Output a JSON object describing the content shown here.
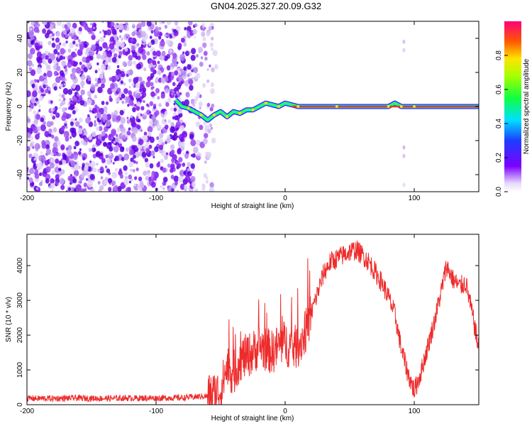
{
  "title": "GN04.2025.327.20.09.G32",
  "colors": {
    "snr_line": "#ee2b2b",
    "scatter_low": "#cdb8ee",
    "scatter_high": "#6a00e0",
    "band_center": "#e43a22"
  },
  "chart_data": [
    {
      "type": "heatmap",
      "title": "GN04.2025.327.20.09.G32",
      "xlabel": "Height of straight line (km)",
      "ylabel": "Frequency (Hz)",
      "xlim": [
        -200,
        150
      ],
      "ylim": [
        -50,
        50
      ],
      "xticks": [
        -200,
        -100,
        0,
        100
      ],
      "xtick_labels": [
        "-200",
        "-100",
        "0",
        "100"
      ],
      "yticks": [
        -40,
        -20,
        0,
        20,
        40
      ],
      "ytick_labels": [
        "-40",
        "-20",
        "0",
        "20",
        "40"
      ],
      "colorbar": {
        "label": "Normalized spectral amplitude",
        "range": [
          0,
          1
        ],
        "ticks": [
          0.0,
          0.2,
          0.4,
          0.6,
          0.8
        ],
        "tick_labels": [
          "0.0",
          "0.2",
          "0.4",
          "0.6",
          "0.8"
        ]
      },
      "signal_track": {
        "x": [
          -85,
          -80,
          -75,
          -70,
          -65,
          -60,
          -55,
          -50,
          -45,
          -40,
          -35,
          -30,
          -25,
          -20,
          -15,
          -10,
          -5,
          0,
          10,
          20,
          40,
          60,
          80,
          85,
          90,
          95,
          100,
          120,
          150
        ],
        "y": [
          4,
          0,
          -1,
          -3,
          -5,
          -8,
          -5,
          -3,
          -6,
          -3,
          -4,
          -2,
          -2,
          0,
          2,
          1,
          0,
          2,
          0,
          0,
          0,
          0,
          0,
          2,
          0,
          0,
          0,
          0,
          0
        ]
      }
    },
    {
      "type": "line",
      "xlabel": "Height of straight line (km)",
      "ylabel": "SNR (10 * v/v)",
      "xlim": [
        -200,
        150
      ],
      "ylim": [
        0,
        4900
      ],
      "xticks": [
        -200,
        -100,
        0,
        100
      ],
      "xtick_labels": [
        "-200",
        "-100",
        "0",
        "100"
      ],
      "yticks": [
        0,
        1000,
        2000,
        3000,
        4000
      ],
      "ytick_labels": [
        "0",
        "1000",
        "2000",
        "3000",
        "4000"
      ],
      "series": [
        {
          "name": "SNR",
          "x": [
            -200,
            -180,
            -160,
            -140,
            -120,
            -100,
            -80,
            -60,
            -50,
            -45,
            -40,
            -35,
            -30,
            -25,
            -20,
            -15,
            -10,
            -5,
            0,
            5,
            10,
            15,
            20,
            25,
            30,
            35,
            40,
            45,
            50,
            55,
            60,
            65,
            70,
            75,
            80,
            85,
            90,
            95,
            100,
            105,
            110,
            115,
            120,
            125,
            130,
            135,
            140,
            145,
            150
          ],
          "y": [
            180,
            180,
            190,
            180,
            190,
            190,
            200,
            250,
            400,
            1100,
            900,
            1300,
            1400,
            1500,
            1700,
            1600,
            1500,
            1700,
            1800,
            1600,
            1700,
            2000,
            2600,
            3200,
            3800,
            4100,
            4200,
            4300,
            4400,
            4450,
            4300,
            4100,
            3800,
            3500,
            3100,
            2600,
            1600,
            900,
            400,
            900,
            1600,
            2300,
            3100,
            4000,
            3600,
            3400,
            3500,
            2600,
            1600
          ]
        }
      ]
    }
  ]
}
